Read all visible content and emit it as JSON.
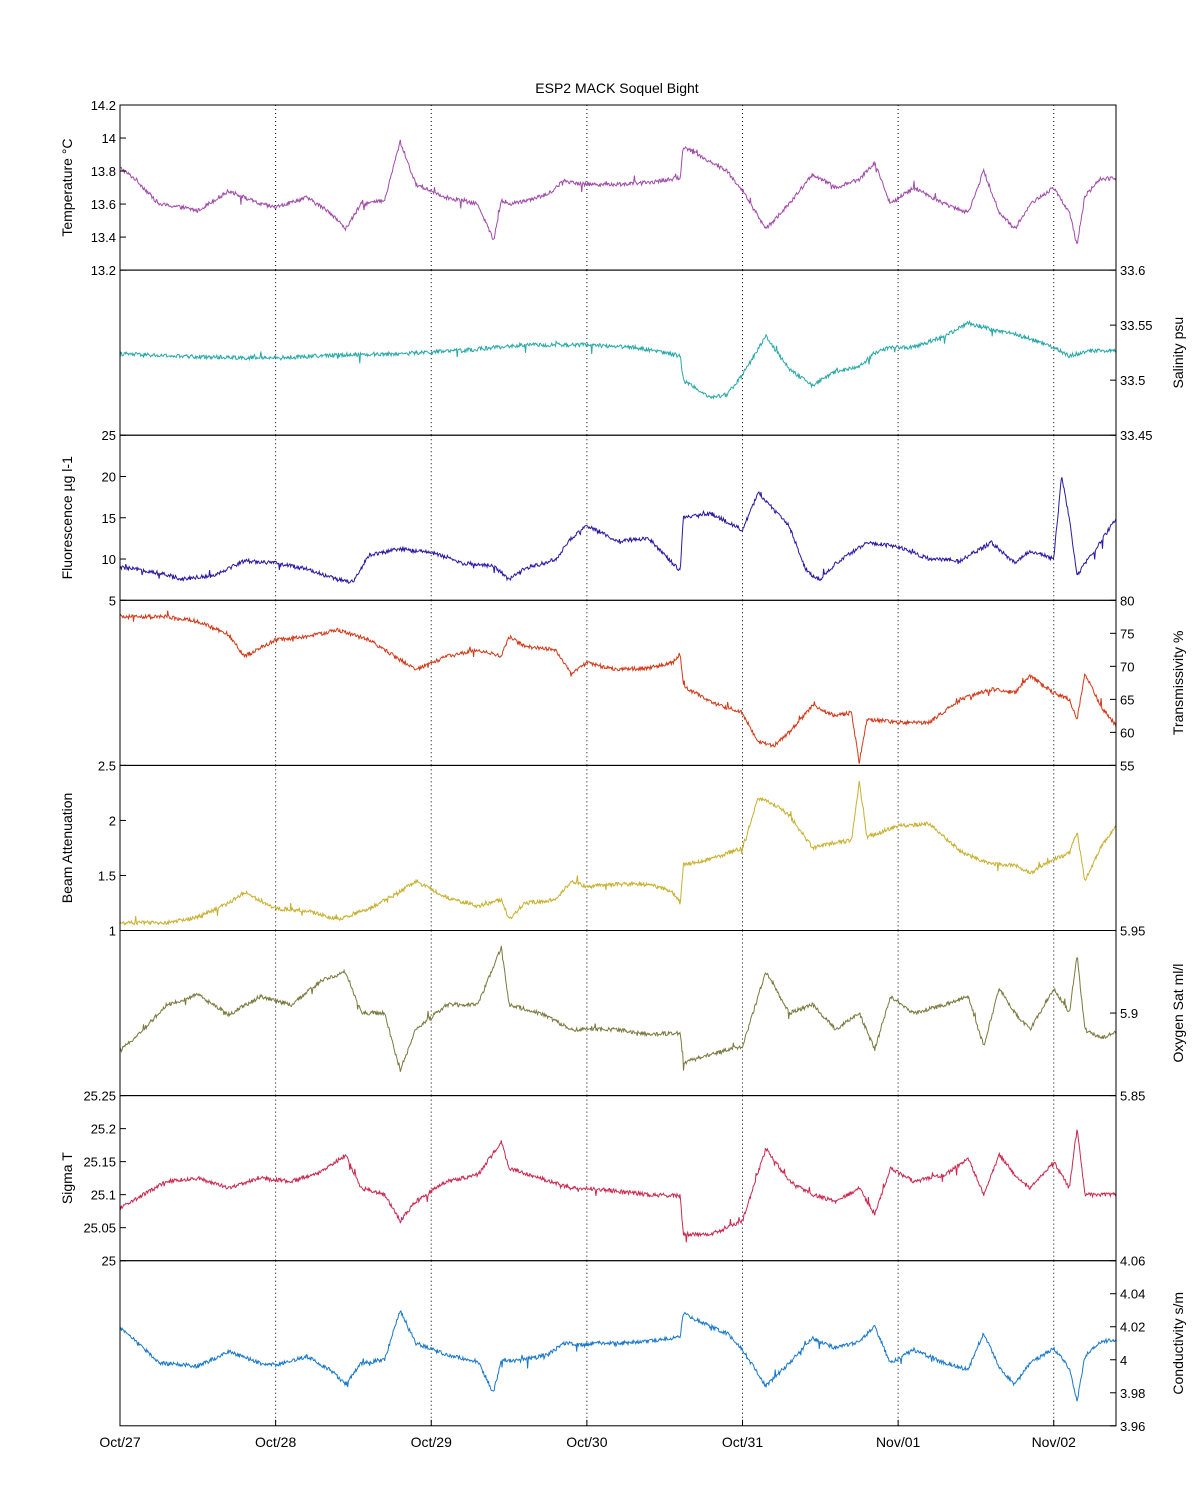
{
  "chart_data": {
    "type": "line",
    "title": "ESP2 MACK  Soquel Bight",
    "x_ticks": [
      "Oct/27",
      "Oct/28",
      "Oct/29",
      "Oct/30",
      "Oct/31",
      "Nov/01",
      "Nov/02"
    ],
    "x_range_days": [
      0,
      6.4
    ],
    "grid": "vertical-dotted",
    "panels": [
      {
        "name": "Temperature",
        "ylabel": "Temperature °C",
        "axis_side": "left",
        "ylim": [
          13.2,
          14.2
        ],
        "ticks": [
          "13.2",
          "13.4",
          "13.6",
          "13.8",
          "14",
          "14.2"
        ],
        "color": "#a04ca8",
        "x": [
          0,
          0.1,
          0.25,
          0.4,
          0.5,
          0.7,
          0.9,
          1.0,
          1.2,
          1.35,
          1.45,
          1.55,
          1.7,
          1.8,
          1.9,
          2.1,
          2.3,
          2.4,
          2.45,
          2.5,
          2.6,
          2.75,
          2.85,
          3.0,
          3.05,
          3.2,
          3.4,
          3.6,
          3.62,
          3.75,
          3.9,
          4.0,
          4.15,
          4.3,
          4.45,
          4.6,
          4.75,
          4.85,
          4.95,
          5.1,
          5.3,
          5.45,
          5.55,
          5.65,
          5.75,
          5.85,
          6.0,
          6.1,
          6.15,
          6.2,
          6.3,
          6.4
        ],
        "y": [
          13.82,
          13.75,
          13.6,
          13.58,
          13.56,
          13.68,
          13.6,
          13.58,
          13.64,
          13.55,
          13.45,
          13.6,
          13.62,
          13.98,
          13.72,
          13.64,
          13.6,
          13.38,
          13.62,
          13.6,
          13.62,
          13.66,
          13.74,
          13.72,
          13.72,
          13.72,
          13.73,
          13.76,
          13.95,
          13.88,
          13.8,
          13.68,
          13.45,
          13.6,
          13.78,
          13.7,
          13.75,
          13.85,
          13.6,
          13.7,
          13.6,
          13.55,
          13.8,
          13.55,
          13.45,
          13.6,
          13.7,
          13.55,
          13.35,
          13.65,
          13.75,
          13.76
        ]
      },
      {
        "name": "Salinity",
        "ylabel": "Salinity psu",
        "axis_side": "right",
        "ylim": [
          33.45,
          33.6
        ],
        "ticks": [
          "33.45",
          "33.5",
          "33.55",
          "33.6"
        ],
        "color": "#2aa8a8",
        "x": [
          0,
          0.3,
          0.6,
          1.0,
          1.4,
          1.8,
          2.2,
          2.6,
          3.0,
          3.3,
          3.5,
          3.6,
          3.62,
          3.8,
          3.9,
          4.0,
          4.15,
          4.3,
          4.45,
          4.6,
          4.75,
          4.85,
          4.95,
          5.1,
          5.3,
          5.45,
          5.6,
          5.75,
          5.9,
          6.0,
          6.1,
          6.2,
          6.3,
          6.4
        ],
        "y": [
          33.524,
          33.522,
          33.521,
          33.52,
          33.523,
          33.524,
          33.527,
          33.532,
          33.532,
          33.53,
          33.525,
          33.522,
          33.5,
          33.484,
          33.487,
          33.505,
          33.54,
          33.51,
          33.495,
          33.508,
          33.512,
          33.525,
          33.53,
          33.53,
          33.54,
          33.552,
          33.546,
          33.542,
          33.535,
          33.53,
          33.522,
          33.526,
          33.527,
          33.527
        ]
      },
      {
        "name": "Fluorescence",
        "ylabel": "Fluorescence µg l-1",
        "axis_side": "left",
        "ylim": [
          5,
          25
        ],
        "ticks": [
          "5",
          "10",
          "15",
          "20",
          "25"
        ],
        "color": "#2a1aa0",
        "x": [
          0,
          0.2,
          0.4,
          0.6,
          0.8,
          1.0,
          1.2,
          1.4,
          1.5,
          1.6,
          1.8,
          2.0,
          2.2,
          2.4,
          2.5,
          2.6,
          2.8,
          2.9,
          3.0,
          3.2,
          3.4,
          3.55,
          3.6,
          3.62,
          3.8,
          4.0,
          4.1,
          4.2,
          4.3,
          4.4,
          4.45,
          4.5,
          4.6,
          4.8,
          5.0,
          5.2,
          5.4,
          5.6,
          5.75,
          5.85,
          6.0,
          6.05,
          6.1,
          6.15,
          6.2,
          6.3,
          6.4
        ],
        "y": [
          9,
          8.5,
          7.6,
          8,
          9.8,
          9.5,
          8.8,
          7.5,
          7.2,
          10.5,
          11.2,
          10.8,
          9.5,
          9.2,
          7.5,
          8.8,
          10,
          12.5,
          14,
          12.2,
          12.5,
          9.5,
          8.5,
          15,
          15.5,
          13.5,
          18,
          16,
          14,
          9,
          8,
          7.5,
          9.5,
          12,
          11.5,
          10,
          9.8,
          12,
          9.5,
          11,
          10,
          20,
          15,
          8,
          9.5,
          12,
          15
        ]
      },
      {
        "name": "Transmissivity",
        "ylabel": "Transmissivity %",
        "axis_side": "right",
        "ylim": [
          55,
          80
        ],
        "ticks": [
          "55",
          "60",
          "65",
          "70",
          "75",
          "80"
        ],
        "color": "#d03a1a",
        "x": [
          0,
          0.3,
          0.5,
          0.7,
          0.8,
          1.0,
          1.2,
          1.4,
          1.6,
          1.8,
          1.9,
          2.1,
          2.3,
          2.45,
          2.5,
          2.6,
          2.8,
          2.9,
          3.0,
          3.2,
          3.4,
          3.55,
          3.6,
          3.62,
          3.8,
          4.0,
          4.1,
          4.2,
          4.3,
          4.45,
          4.6,
          4.7,
          4.75,
          4.8,
          5.0,
          5.2,
          5.4,
          5.6,
          5.75,
          5.85,
          6.0,
          6.1,
          6.15,
          6.2,
          6.3,
          6.4
        ],
        "y": [
          77.5,
          77.5,
          76.8,
          74.8,
          71.5,
          74,
          74.5,
          75.5,
          74,
          71,
          69.5,
          71.5,
          72.5,
          71.5,
          74.5,
          73,
          72.5,
          69,
          70.5,
          69.5,
          69.8,
          70.5,
          72,
          67,
          64.5,
          63,
          58.5,
          58,
          60,
          64,
          62.5,
          63,
          55.5,
          62,
          61.5,
          61.5,
          65,
          66.5,
          66,
          68.5,
          66,
          65,
          62,
          69,
          64,
          61
        ]
      },
      {
        "name": "Beam Attenuation",
        "ylabel": "Beam Attenuation",
        "axis_side": "left",
        "ylim": [
          1,
          2.5
        ],
        "ticks": [
          "1",
          "1.5",
          "2",
          "2.5"
        ],
        "color": "#c8b030",
        "x": [
          0,
          0.3,
          0.5,
          0.7,
          0.8,
          1.0,
          1.2,
          1.4,
          1.6,
          1.8,
          1.9,
          2.1,
          2.3,
          2.45,
          2.5,
          2.6,
          2.8,
          2.9,
          3.0,
          3.2,
          3.4,
          3.55,
          3.6,
          3.62,
          3.8,
          4.0,
          4.1,
          4.2,
          4.3,
          4.45,
          4.6,
          4.7,
          4.75,
          4.8,
          5.0,
          5.2,
          5.4,
          5.6,
          5.75,
          5.85,
          6.0,
          6.1,
          6.15,
          6.2,
          6.3,
          6.4
        ],
        "y": [
          1.07,
          1.07,
          1.12,
          1.25,
          1.35,
          1.2,
          1.18,
          1.1,
          1.2,
          1.35,
          1.45,
          1.3,
          1.22,
          1.28,
          1.1,
          1.25,
          1.28,
          1.45,
          1.4,
          1.42,
          1.42,
          1.35,
          1.25,
          1.6,
          1.65,
          1.75,
          2.2,
          2.15,
          2.05,
          1.75,
          1.8,
          1.82,
          2.35,
          1.85,
          1.95,
          1.97,
          1.72,
          1.6,
          1.6,
          1.52,
          1.65,
          1.7,
          1.9,
          1.45,
          1.75,
          1.95
        ]
      },
      {
        "name": "Oxygen Sat",
        "ylabel": "Oxygen Sat ml/l",
        "axis_side": "right",
        "ylim": [
          5.85,
          5.95
        ],
        "ticks": [
          "5.85",
          "5.9",
          "5.95"
        ],
        "color": "#7a7a40",
        "x": [
          0,
          0.15,
          0.3,
          0.5,
          0.7,
          0.9,
          1.1,
          1.3,
          1.45,
          1.55,
          1.7,
          1.8,
          1.9,
          2.1,
          2.3,
          2.45,
          2.5,
          2.7,
          2.9,
          3.0,
          3.2,
          3.4,
          3.6,
          3.62,
          3.8,
          4.0,
          4.15,
          4.3,
          4.45,
          4.6,
          4.75,
          4.85,
          4.95,
          5.1,
          5.3,
          5.45,
          5.55,
          5.65,
          5.75,
          5.85,
          6.0,
          6.1,
          6.15,
          6.2,
          6.3,
          6.4
        ],
        "y": [
          5.877,
          5.89,
          5.905,
          5.911,
          5.899,
          5.91,
          5.905,
          5.92,
          5.925,
          5.9,
          5.9,
          5.865,
          5.89,
          5.905,
          5.905,
          5.94,
          5.905,
          5.9,
          5.89,
          5.89,
          5.89,
          5.887,
          5.888,
          5.87,
          5.875,
          5.88,
          5.925,
          5.9,
          5.905,
          5.89,
          5.9,
          5.878,
          5.91,
          5.9,
          5.905,
          5.91,
          5.88,
          5.915,
          5.9,
          5.89,
          5.915,
          5.9,
          5.935,
          5.89,
          5.885,
          5.888
        ]
      },
      {
        "name": "Sigma T",
        "ylabel": "Sigma T",
        "axis_side": "left",
        "ylim": [
          25,
          25.25
        ],
        "ticks": [
          "25",
          "25.05",
          "25.1",
          "25.15",
          "25.2",
          "25.25"
        ],
        "color": "#c82a50",
        "x": [
          0,
          0.15,
          0.3,
          0.5,
          0.7,
          0.9,
          1.1,
          1.3,
          1.45,
          1.55,
          1.7,
          1.8,
          1.9,
          2.1,
          2.3,
          2.45,
          2.5,
          2.7,
          2.9,
          3.0,
          3.2,
          3.4,
          3.6,
          3.62,
          3.8,
          4.0,
          4.15,
          4.3,
          4.45,
          4.6,
          4.75,
          4.85,
          4.95,
          5.1,
          5.3,
          5.45,
          5.55,
          5.65,
          5.75,
          5.85,
          6.0,
          6.1,
          6.15,
          6.2,
          6.3,
          6.4
        ],
        "y": [
          25.08,
          25.1,
          25.12,
          25.125,
          25.11,
          25.125,
          25.12,
          25.135,
          25.16,
          25.11,
          25.1,
          25.06,
          25.09,
          25.12,
          25.13,
          25.18,
          25.14,
          25.125,
          25.11,
          25.11,
          25.105,
          25.1,
          25.098,
          25.04,
          25.04,
          25.06,
          25.17,
          25.12,
          25.1,
          25.09,
          25.11,
          25.07,
          25.14,
          25.12,
          25.13,
          25.155,
          25.1,
          25.16,
          25.13,
          25.11,
          25.15,
          25.11,
          25.2,
          25.1,
          25.1,
          25.1
        ]
      },
      {
        "name": "Conductivity",
        "ylabel": "Conductivity s/m",
        "axis_side": "right",
        "ylim": [
          3.96,
          4.06
        ],
        "ticks": [
          "3.96",
          "3.98",
          "4",
          "4.02",
          "4.04",
          "4.06"
        ],
        "color": "#1a78c8",
        "x": [
          0,
          0.1,
          0.25,
          0.4,
          0.5,
          0.7,
          0.9,
          1.0,
          1.2,
          1.35,
          1.45,
          1.55,
          1.7,
          1.8,
          1.9,
          2.1,
          2.3,
          2.4,
          2.45,
          2.5,
          2.6,
          2.75,
          2.85,
          3.0,
          3.05,
          3.2,
          3.4,
          3.6,
          3.62,
          3.75,
          3.9,
          4.0,
          4.15,
          4.3,
          4.45,
          4.6,
          4.75,
          4.85,
          4.95,
          5.1,
          5.3,
          5.45,
          5.55,
          5.65,
          5.75,
          5.85,
          6.0,
          6.1,
          6.15,
          6.2,
          6.3,
          6.4
        ],
        "y": [
          4.019,
          4.012,
          3.998,
          3.997,
          3.996,
          4.005,
          3.998,
          3.997,
          4.002,
          3.994,
          3.985,
          3.998,
          4.0,
          4.03,
          4.01,
          4.003,
          3.999,
          3.98,
          4.0,
          3.999,
          4.0,
          4.003,
          4.01,
          4.009,
          4.01,
          4.01,
          4.011,
          4.014,
          4.028,
          4.022,
          4.016,
          4.006,
          3.984,
          3.998,
          4.013,
          4.007,
          4.011,
          4.02,
          3.998,
          4.006,
          3.998,
          3.994,
          4.016,
          3.995,
          3.985,
          3.998,
          4.007,
          3.995,
          3.975,
          4.002,
          4.011,
          4.012
        ]
      }
    ]
  }
}
